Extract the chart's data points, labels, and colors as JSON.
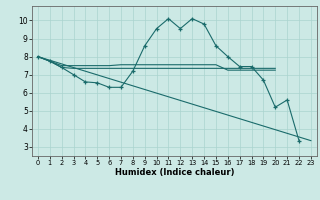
{
  "xlabel": "Humidex (Indice chaleur)",
  "xlim": [
    -0.5,
    23.5
  ],
  "ylim": [
    2.5,
    10.8
  ],
  "yticks": [
    3,
    4,
    5,
    6,
    7,
    8,
    9,
    10
  ],
  "xticks": [
    0,
    1,
    2,
    3,
    4,
    5,
    6,
    7,
    8,
    9,
    10,
    11,
    12,
    13,
    14,
    15,
    16,
    17,
    18,
    19,
    20,
    21,
    22,
    23
  ],
  "bg_color": "#cce9e5",
  "grid_color": "#aad4cf",
  "line_color": "#1a6b6b",
  "line1_x": [
    0,
    1,
    2,
    3,
    4,
    5,
    6,
    7,
    8,
    9,
    10,
    11,
    12,
    13,
    14,
    15,
    16,
    17,
    18,
    19,
    20,
    21,
    22
  ],
  "line1_y": [
    8.0,
    7.75,
    7.4,
    7.0,
    6.6,
    6.55,
    6.3,
    6.3,
    7.2,
    8.6,
    9.55,
    10.1,
    9.55,
    10.1,
    9.8,
    8.6,
    8.0,
    7.45,
    7.45,
    6.7,
    5.2,
    5.6,
    3.35
  ],
  "line2_x": [
    0,
    1,
    2,
    3,
    4,
    5,
    6,
    7,
    8,
    9,
    10,
    11,
    12,
    13,
    14,
    15,
    16,
    17,
    18,
    19,
    20
  ],
  "line2_y": [
    8.0,
    7.75,
    7.4,
    7.35,
    7.35,
    7.35,
    7.35,
    7.35,
    7.35,
    7.35,
    7.35,
    7.35,
    7.35,
    7.35,
    7.35,
    7.35,
    7.35,
    7.35,
    7.35,
    7.35,
    7.35
  ],
  "line3_x": [
    0,
    1,
    2,
    3,
    4,
    5,
    6,
    7,
    8,
    9,
    10,
    11,
    12,
    13,
    14,
    15,
    16,
    17,
    18,
    19,
    20
  ],
  "line3_y": [
    8.0,
    7.75,
    7.5,
    7.5,
    7.5,
    7.5,
    7.5,
    7.55,
    7.55,
    7.55,
    7.55,
    7.55,
    7.55,
    7.55,
    7.55,
    7.55,
    7.25,
    7.25,
    7.25,
    7.25,
    7.25
  ],
  "line4_x": [
    0,
    23
  ],
  "line4_y": [
    8.0,
    3.35
  ]
}
